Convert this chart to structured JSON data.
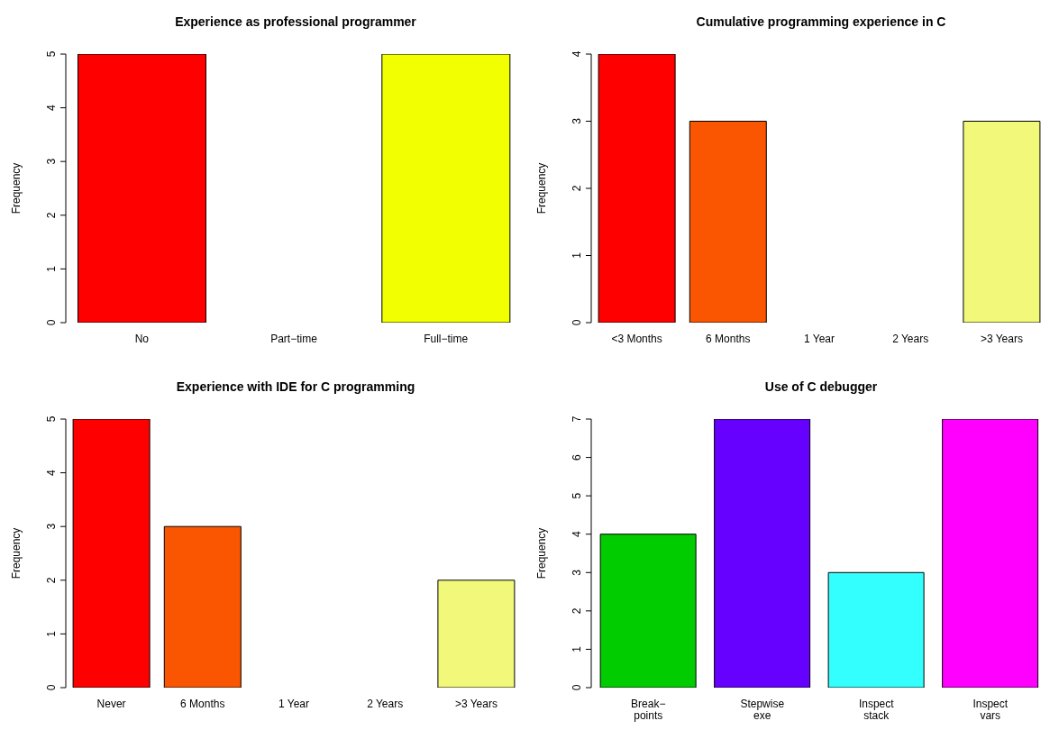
{
  "chart_data": [
    {
      "type": "bar",
      "title": "Experience as professional programmer",
      "ylabel": "Frequency",
      "categories": [
        "No",
        "Part−time",
        "Full−time"
      ],
      "values": [
        5,
        0,
        5
      ],
      "colors": [
        "#ff0000",
        "#ff8000",
        "#f2ff00"
      ],
      "ylim": [
        0,
        5
      ],
      "yticks": [
        0,
        1,
        2,
        3,
        4,
        5
      ]
    },
    {
      "type": "bar",
      "title": "Cumulative programming experience in C",
      "ylabel": "Frequency",
      "categories": [
        "<3 Months",
        "6 Months",
        "1 Year",
        "2 Years",
        ">3 Years"
      ],
      "values": [
        4,
        3,
        0,
        0,
        3
      ],
      "colors": [
        "#ff0000",
        "#fa5500",
        "#ffaa00",
        "#ffff00",
        "#f2f87a"
      ],
      "ylim": [
        0,
        4
      ],
      "yticks": [
        0,
        1,
        2,
        3,
        4
      ]
    },
    {
      "type": "bar",
      "title": "Experience with IDE for C programming",
      "ylabel": "Frequency",
      "categories": [
        "Never",
        "6 Months",
        "1 Year",
        "2 Years",
        ">3 Years"
      ],
      "values": [
        5,
        3,
        0,
        0,
        2
      ],
      "colors": [
        "#ff0000",
        "#fa5500",
        "#ffaa00",
        "#ffff00",
        "#f2f87a"
      ],
      "ylim": [
        0,
        5
      ],
      "yticks": [
        0,
        1,
        2,
        3,
        4,
        5
      ]
    },
    {
      "type": "bar",
      "title": "Use of C debugger",
      "ylabel": "Frequency",
      "categories": [
        "Break−\npoints",
        "Stepwise\nexe",
        "Inspect\nstack",
        "Inspect\nvars"
      ],
      "values": [
        4,
        7,
        3,
        7
      ],
      "colors": [
        "#00cc00",
        "#6600ff",
        "#33ffff",
        "#ff00ff"
      ],
      "ylim": [
        0,
        7
      ],
      "yticks": [
        0,
        1,
        2,
        3,
        4,
        5,
        6,
        7
      ]
    }
  ]
}
